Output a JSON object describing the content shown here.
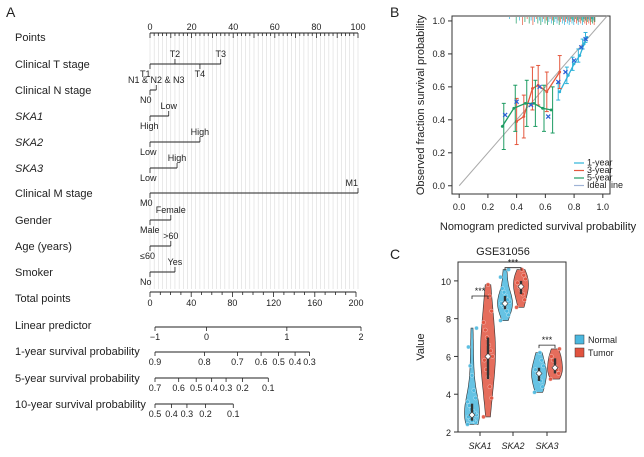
{
  "panel_letters": {
    "a": "A",
    "b": "B",
    "c": "C"
  },
  "chart_data": [
    {
      "type": "nomogram",
      "panel": "A",
      "rows": [
        {
          "label": "Points",
          "italic": false
        },
        {
          "label": "Clinical T stage",
          "italic": false
        },
        {
          "label": "Clinical N stage",
          "italic": false
        },
        {
          "label": "SKA1",
          "italic": true
        },
        {
          "label": "SKA2",
          "italic": true
        },
        {
          "label": "SKA3",
          "italic": true
        },
        {
          "label": "Clinical M stage",
          "italic": false
        },
        {
          "label": "Gender",
          "italic": false
        },
        {
          "label": "Age (years)",
          "italic": false
        },
        {
          "label": "Smoker",
          "italic": false
        },
        {
          "label": "Total points",
          "italic": false
        },
        {
          "label": "Linear predictor",
          "italic": false
        },
        {
          "label": "1-year survival probability",
          "italic": false
        },
        {
          "label": "5-year survival probability",
          "italic": false
        },
        {
          "label": "10-year survival probability",
          "italic": false
        }
      ],
      "points_axis": {
        "min": 0,
        "max": 100,
        "labels": [
          "0",
          "20",
          "40",
          "60",
          "80",
          "100"
        ]
      },
      "variables": [
        {
          "row": 1,
          "levels": [
            {
              "text": "T1",
              "points": 0
            },
            {
              "text": "T2",
              "points": 12
            },
            {
              "text": "T4",
              "points": 24
            },
            {
              "text": "T3",
              "points": 34
            }
          ]
        },
        {
          "row": 2,
          "levels": [
            {
              "text": "N0",
              "points": 0
            },
            {
              "text": "N1 & N2 & N3",
              "points": 3
            }
          ]
        },
        {
          "row": 3,
          "levels": [
            {
              "text": "High",
              "points": 0
            },
            {
              "text": "Low",
              "points": 9
            }
          ]
        },
        {
          "row": 4,
          "levels": [
            {
              "text": "Low",
              "points": 0
            },
            {
              "text": "High",
              "points": 24
            }
          ]
        },
        {
          "row": 5,
          "levels": [
            {
              "text": "Low",
              "points": 0
            },
            {
              "text": "High",
              "points": 13
            }
          ]
        },
        {
          "row": 6,
          "levels": [
            {
              "text": "M0",
              "points": 0
            },
            {
              "text": "M1",
              "points": 100
            }
          ]
        },
        {
          "row": 7,
          "levels": [
            {
              "text": "Male",
              "points": 0
            },
            {
              "text": "Female",
              "points": 10
            }
          ]
        },
        {
          "row": 8,
          "levels": [
            {
              "text": "≤60",
              "points": 0
            },
            {
              "text": ">60",
              "points": 10
            }
          ]
        },
        {
          "row": 9,
          "levels": [
            {
              "text": "No",
              "points": 0
            },
            {
              "text": "Yes",
              "points": 12
            }
          ]
        }
      ],
      "total_points_axis": {
        "min": 0,
        "max": 200,
        "labels": [
          "0",
          "40",
          "80",
          "120",
          "160",
          "200"
        ]
      },
      "linear_predictor": {
        "labels": [
          {
            "text": "−1",
            "total": 0
          },
          {
            "text": "0",
            "total": 50
          },
          {
            "text": "1",
            "total": 128
          },
          {
            "text": "2",
            "total": 200
          }
        ]
      },
      "survival_1yr": {
        "labels": [
          {
            "text": "0.9",
            "total": 0
          },
          {
            "text": "0.8",
            "total": 48
          },
          {
            "text": "0.7",
            "total": 80
          },
          {
            "text": "0.6",
            "total": 103
          },
          {
            "text": "0.5",
            "total": 120
          },
          {
            "text": "0.4",
            "total": 136
          },
          {
            "text": "0.3",
            "total": 150
          }
        ]
      },
      "survival_5yr": {
        "labels": [
          {
            "text": "0.7",
            "total": 0
          },
          {
            "text": "0.6",
            "total": 23
          },
          {
            "text": "0.5",
            "total": 40
          },
          {
            "text": "0.4",
            "total": 55
          },
          {
            "text": "0.3",
            "total": 69
          },
          {
            "text": "0.2",
            "total": 85
          },
          {
            "text": "0.1",
            "total": 110
          }
        ]
      },
      "survival_10yr": {
        "labels": [
          {
            "text": "0.5",
            "total": 0
          },
          {
            "text": "0.4",
            "total": 16
          },
          {
            "text": "0.3",
            "total": 31
          },
          {
            "text": "0.2",
            "total": 49
          },
          {
            "text": "0.1",
            "total": 76
          }
        ]
      }
    },
    {
      "type": "line",
      "panel": "B",
      "title": "",
      "xlabel": "Nomogram predicted survival probability",
      "ylabel": "Observed fraction survival probability",
      "xlim": [
        -0.05,
        1.05
      ],
      "ylim": [
        -0.05,
        1.03
      ],
      "xticks": [
        "0.0",
        "0.2",
        "0.4",
        "0.6",
        "0.8",
        "1.0"
      ],
      "yticks": [
        "0.0",
        "0.2",
        "0.4",
        "0.6",
        "0.8",
        "1.0"
      ],
      "series": [
        {
          "name": "1-year",
          "color": "#2fb3d9",
          "points": [
            [
              0.7,
              0.57
            ],
            [
              0.76,
              0.67
            ],
            [
              0.8,
              0.74
            ],
            [
              0.84,
              0.79
            ],
            [
              0.87,
              0.86
            ],
            [
              0.89,
              0.9
            ]
          ],
          "err": [
            0.05,
            0.05,
            0.04,
            0.04,
            0.03,
            0.03
          ]
        },
        {
          "name": "3-year",
          "color": "#e4573d",
          "points": [
            [
              0.4,
              0.39
            ],
            [
              0.45,
              0.42
            ],
            [
              0.51,
              0.59
            ],
            [
              0.55,
              0.61
            ],
            [
              0.61,
              0.57
            ],
            [
              0.7,
              0.69
            ]
          ],
          "err": [
            0.14,
            0.13,
            0.13,
            0.12,
            0.12,
            0.1
          ]
        },
        {
          "name": "5-year",
          "color": "#1e9c63",
          "points": [
            [
              0.3,
              0.36
            ],
            [
              0.38,
              0.47
            ],
            [
              0.46,
              0.5
            ],
            [
              0.52,
              0.5
            ],
            [
              0.58,
              0.47
            ],
            [
              0.64,
              0.46
            ]
          ],
          "err": [
            0.14,
            0.14,
            0.14,
            0.14,
            0.14,
            0.14
          ]
        }
      ],
      "markers": [
        [
          0.32,
          0.43
        ],
        [
          0.4,
          0.51
        ],
        [
          0.5,
          0.49
        ],
        [
          0.56,
          0.6
        ],
        [
          0.62,
          0.42
        ],
        [
          0.69,
          0.63
        ],
        [
          0.74,
          0.69
        ],
        [
          0.8,
          0.76
        ],
        [
          0.85,
          0.84
        ],
        [
          0.88,
          0.89
        ]
      ],
      "ideal_line": {
        "name": "Ideal line",
        "color": "#aaaaaa"
      },
      "legend_position": "bottom-right",
      "top_rug_colors": [
        "#2fb3d9",
        "#e4573d",
        "#1e9c63"
      ]
    },
    {
      "type": "violin",
      "panel": "C",
      "title": "GSE31056",
      "xlabel": "",
      "ylabel": "Value",
      "ylim": [
        2,
        11
      ],
      "yticks": [
        "2",
        "4",
        "6",
        "8",
        "10"
      ],
      "categories": [
        "SKA1",
        "SKA2",
        "SKA3"
      ],
      "series": [
        {
          "name": "Normal",
          "color": "#4bb8df",
          "groups": [
            {
              "median": 2.9,
              "q1": 2.6,
              "q3": 3.5,
              "points": [
                2.4,
                2.5,
                2.6,
                2.6,
                2.7,
                2.8,
                2.9,
                3.0,
                3.1,
                3.2,
                3.4,
                3.6,
                3.8,
                4.2,
                5.0,
                5.5,
                6.5,
                7.5
              ]
            },
            {
              "median": 8.8,
              "q1": 8.5,
              "q3": 9.2,
              "points": [
                7.9,
                8.2,
                8.4,
                8.6,
                8.7,
                8.8,
                8.9,
                9.0,
                9.2,
                9.4,
                9.6,
                10.2,
                10.6
              ]
            },
            {
              "median": 5.1,
              "q1": 4.7,
              "q3": 5.4,
              "points": [
                4.1,
                4.4,
                4.7,
                4.9,
                5.1,
                5.3,
                5.5,
                5.8,
                6.2
              ]
            }
          ]
        },
        {
          "name": "Tumor",
          "color": "#e1533f",
          "groups": [
            {
              "median": 6.0,
              "q1": 4.8,
              "q3": 7.0,
              "points": [
                2.8,
                3.8,
                4.4,
                4.9,
                5.3,
                5.8,
                6.0,
                6.3,
                6.6,
                7.0,
                7.4,
                7.8,
                8.4,
                9.2,
                9.8
              ]
            },
            {
              "median": 9.7,
              "q1": 9.3,
              "q3": 10.0,
              "points": [
                8.6,
                9.0,
                9.3,
                9.5,
                9.7,
                9.9,
                10.1,
                10.3,
                10.6
              ]
            },
            {
              "median": 5.4,
              "q1": 5.1,
              "q3": 5.9,
              "points": [
                4.8,
                5.1,
                5.3,
                5.5,
                5.8,
                6.0,
                6.4
              ]
            }
          ]
        }
      ],
      "significance": [
        "***",
        "***",
        "***"
      ],
      "legend_position": "right"
    }
  ]
}
